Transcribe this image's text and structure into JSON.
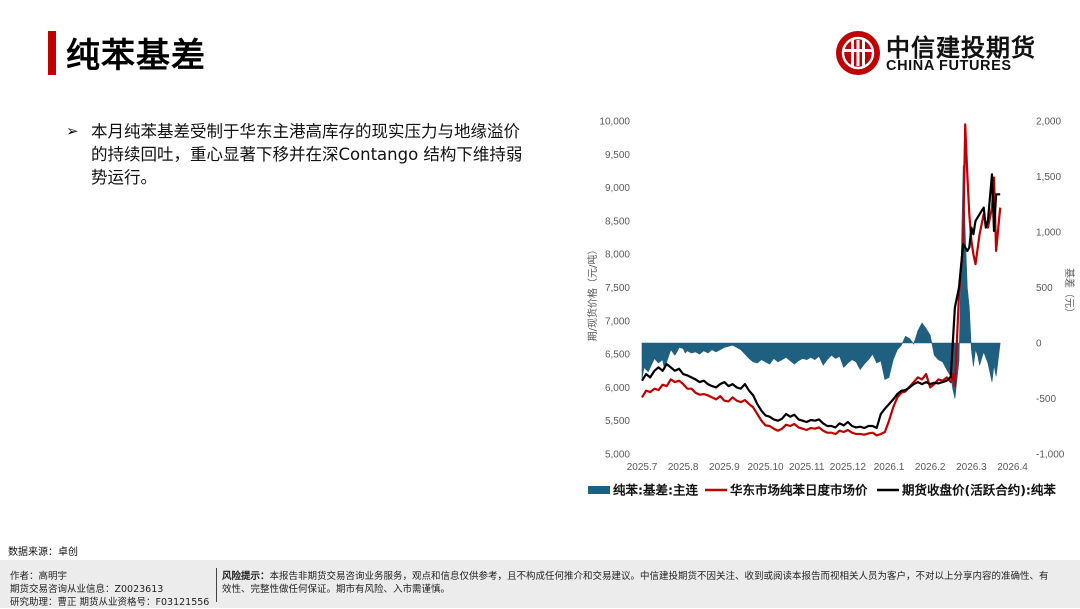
{
  "header": {
    "title": "纯苯基差",
    "logo_cn": "中信建投期货",
    "logo_en": "CHINA FUTURES",
    "accent_color": "#c00000"
  },
  "content": {
    "bullet_mark": "➢",
    "bullet_text": "本月纯苯基差受制于华东主港高库存的现实压力与地缘溢价的持续回吐，重心显著下移并在深Contango 结构下维持弱势运行。"
  },
  "source": "数据来源：卓创",
  "footer": {
    "author": "作者：高明宇",
    "license1": "期货交易咨询从业信息：Z0023613",
    "license2": "研究助理：曹正  期货从业资格号：F03121556",
    "risk_label": "风险提示：",
    "risk_text": "本报告非期货交易咨询业务服务，观点和信息仅供参考，且不构成任何推介和交易建议。中信建投期货不因关注、收到或阅读本报告而视相关人员为客户，不对以上分享内容的准确性、有效性、完整性做任何保证。期市有风险、入市需谨慎。"
  },
  "chart_data": {
    "type": "line",
    "ylabel_left": "期/现货价格（元/吨）",
    "ylabel_right": "基差（元）",
    "ylim_left": [
      5000,
      10000
    ],
    "ylim_right": [
      -1000,
      2000
    ],
    "yticks_left": [
      "5,000",
      "5,500",
      "6,000",
      "6,500",
      "7,000",
      "7,500",
      "8,000",
      "8,500",
      "9,000",
      "9,500",
      "10,000"
    ],
    "yticks_right": [
      "-1,000",
      "-500",
      "0",
      "500",
      "1,000",
      "1,500",
      "2,000"
    ],
    "xticks": [
      "2025.7",
      "2025.8",
      "2025.9",
      "2025.10",
      "2025.11",
      "2025.12",
      "2026.1",
      "2026.2",
      "2026.3",
      "2026.4"
    ],
    "legend_position": "bottom",
    "grid": false,
    "series": [
      {
        "name": "纯苯:基差:主连",
        "kind": "area",
        "axis": "right",
        "color": "#1f5f7f",
        "x": [
          0,
          0.05,
          0.15,
          0.3,
          0.4,
          0.5,
          0.55,
          0.6,
          0.7,
          0.8,
          0.85,
          0.9,
          1.0,
          1.05,
          1.1,
          1.2,
          1.3,
          1.4,
          1.5,
          1.6,
          1.7,
          1.8,
          1.9,
          2.0,
          2.1,
          2.2,
          2.3,
          2.4,
          2.5,
          2.6,
          2.7,
          2.8,
          2.9,
          3.0,
          3.1,
          3.2,
          3.3,
          3.4,
          3.5,
          3.6,
          3.7,
          3.8,
          3.9,
          4.0,
          4.1,
          4.2,
          4.3,
          4.4,
          4.5,
          4.6,
          4.7,
          4.8,
          4.9,
          5.0,
          5.1,
          5.2,
          5.3,
          5.4,
          5.5,
          5.6,
          5.7,
          5.8,
          5.9,
          6.0,
          6.1,
          6.2,
          6.3,
          6.4,
          6.5,
          6.6,
          6.7,
          6.8,
          6.9,
          7.0,
          7.1,
          7.2,
          7.3,
          7.4,
          7.5,
          7.55,
          7.6,
          7.7,
          7.8,
          7.85,
          7.9,
          7.95,
          8.0,
          8.05,
          8.1,
          8.15,
          8.2,
          8.3,
          8.4,
          8.5,
          8.55,
          8.6,
          8.7
        ],
        "y": [
          -320,
          -220,
          -260,
          -140,
          -180,
          -150,
          -240,
          -170,
          -60,
          -110,
          -80,
          -40,
          -50,
          -90,
          -70,
          -90,
          -80,
          -100,
          -70,
          -90,
          -60,
          -80,
          -60,
          -40,
          -30,
          -20,
          -40,
          -60,
          -100,
          -140,
          -170,
          -180,
          -150,
          -170,
          -190,
          -140,
          -170,
          -150,
          -130,
          -160,
          -190,
          -160,
          -140,
          -150,
          -130,
          -150,
          -120,
          -200,
          -150,
          -110,
          -140,
          -120,
          -220,
          -180,
          -150,
          -170,
          -240,
          -190,
          -150,
          -100,
          -180,
          -160,
          -330,
          -310,
          -150,
          -60,
          -20,
          60,
          40,
          -10,
          110,
          180,
          130,
          70,
          -110,
          -150,
          -170,
          -240,
          -300,
          -420,
          -500,
          -160,
          1600,
          1000,
          500,
          320,
          -60,
          -210,
          -60,
          -110,
          -200,
          -80,
          -180,
          -350,
          -200,
          -300,
          0
        ],
        "y_print": "basis values (元)"
      },
      {
        "name": "华东市场纯苯日度市场价",
        "kind": "line",
        "axis": "left",
        "color": "#c00000",
        "x": [
          0,
          0.1,
          0.2,
          0.3,
          0.4,
          0.5,
          0.6,
          0.7,
          0.8,
          0.9,
          1.0,
          1.1,
          1.2,
          1.3,
          1.4,
          1.5,
          1.6,
          1.7,
          1.8,
          1.9,
          2.0,
          2.1,
          2.2,
          2.3,
          2.4,
          2.5,
          2.6,
          2.7,
          2.8,
          2.9,
          3.0,
          3.1,
          3.2,
          3.3,
          3.4,
          3.5,
          3.6,
          3.7,
          3.8,
          3.9,
          4.0,
          4.1,
          4.2,
          4.3,
          4.4,
          4.5,
          4.6,
          4.7,
          4.8,
          4.9,
          5.0,
          5.1,
          5.2,
          5.3,
          5.4,
          5.5,
          5.6,
          5.7,
          5.8,
          5.9,
          6.0,
          6.1,
          6.2,
          6.3,
          6.4,
          6.5,
          6.6,
          6.7,
          6.8,
          6.9,
          7.0,
          7.1,
          7.2,
          7.3,
          7.4,
          7.5,
          7.55,
          7.6,
          7.7,
          7.8,
          7.85,
          7.9,
          7.95,
          8.0,
          8.05,
          8.1,
          8.2,
          8.3,
          8.35,
          8.4,
          8.5,
          8.55,
          8.6,
          8.7
        ],
        "y": [
          5850,
          5950,
          5930,
          5980,
          5960,
          6040,
          6020,
          6120,
          6080,
          6100,
          6050,
          5980,
          5980,
          5920,
          5890,
          5900,
          5880,
          5850,
          5820,
          5870,
          5800,
          5790,
          5850,
          5800,
          5780,
          5810,
          5750,
          5700,
          5600,
          5500,
          5430,
          5420,
          5380,
          5350,
          5380,
          5440,
          5420,
          5450,
          5400,
          5380,
          5360,
          5390,
          5380,
          5400,
          5350,
          5320,
          5320,
          5300,
          5350,
          5330,
          5360,
          5320,
          5300,
          5300,
          5290,
          5310,
          5320,
          5280,
          5300,
          5330,
          5500,
          5700,
          5850,
          5920,
          5940,
          6010,
          6080,
          6150,
          6120,
          6200,
          6000,
          6050,
          6120,
          6100,
          6150,
          6080,
          6200,
          6020,
          7400,
          8200,
          9950,
          9200,
          8600,
          8200,
          8000,
          7850,
          8300,
          8600,
          8450,
          8400,
          8700,
          9150,
          8050,
          8700
        ],
        "y_print": "price values (元/吨)"
      },
      {
        "name": "期货收盘价(活跃合约):纯苯",
        "kind": "line",
        "axis": "left",
        "color": "#000000",
        "x": [
          0,
          0.1,
          0.2,
          0.3,
          0.4,
          0.5,
          0.6,
          0.7,
          0.8,
          0.9,
          1.0,
          1.1,
          1.2,
          1.3,
          1.4,
          1.5,
          1.6,
          1.7,
          1.8,
          1.9,
          2.0,
          2.1,
          2.2,
          2.3,
          2.4,
          2.5,
          2.6,
          2.7,
          2.8,
          2.9,
          3.0,
          3.1,
          3.2,
          3.3,
          3.4,
          3.5,
          3.6,
          3.7,
          3.8,
          3.9,
          4.0,
          4.1,
          4.2,
          4.3,
          4.4,
          4.5,
          4.6,
          4.7,
          4.8,
          4.9,
          5.0,
          5.1,
          5.2,
          5.3,
          5.4,
          5.5,
          5.6,
          5.7,
          5.8,
          5.9,
          6.0,
          6.1,
          6.2,
          6.3,
          6.4,
          6.5,
          6.6,
          6.7,
          6.8,
          6.9,
          7.0,
          7.1,
          7.2,
          7.3,
          7.4,
          7.5,
          7.55,
          7.6,
          7.7,
          7.8,
          7.85,
          7.9,
          7.95,
          8.0,
          8.05,
          8.1,
          8.2,
          8.3,
          8.35,
          8.4,
          8.5,
          8.55,
          8.6,
          8.7
        ],
        "y": [
          6100,
          6200,
          6150,
          6250,
          6300,
          6250,
          6350,
          6300,
          6250,
          6280,
          6200,
          6180,
          6150,
          6120,
          6080,
          6100,
          6050,
          6020,
          6000,
          6050,
          6080,
          6020,
          6050,
          6000,
          5980,
          6050,
          5950,
          5880,
          5750,
          5650,
          5580,
          5560,
          5520,
          5500,
          5530,
          5600,
          5560,
          5590,
          5520,
          5500,
          5480,
          5510,
          5500,
          5520,
          5460,
          5420,
          5420,
          5400,
          5460,
          5430,
          5480,
          5420,
          5400,
          5410,
          5390,
          5420,
          5420,
          5390,
          5600,
          5680,
          5750,
          5820,
          5900,
          5950,
          5960,
          6000,
          6050,
          6080,
          6050,
          6080,
          6050,
          6070,
          6060,
          6080,
          6100,
          6160,
          6700,
          7200,
          7500,
          8150,
          8100,
          8050,
          8100,
          8400,
          8300,
          8500,
          8600,
          8700,
          8400,
          8500,
          9200,
          8350,
          8900,
          8900
        ],
        "y_print": "price values (元/吨)"
      }
    ]
  }
}
